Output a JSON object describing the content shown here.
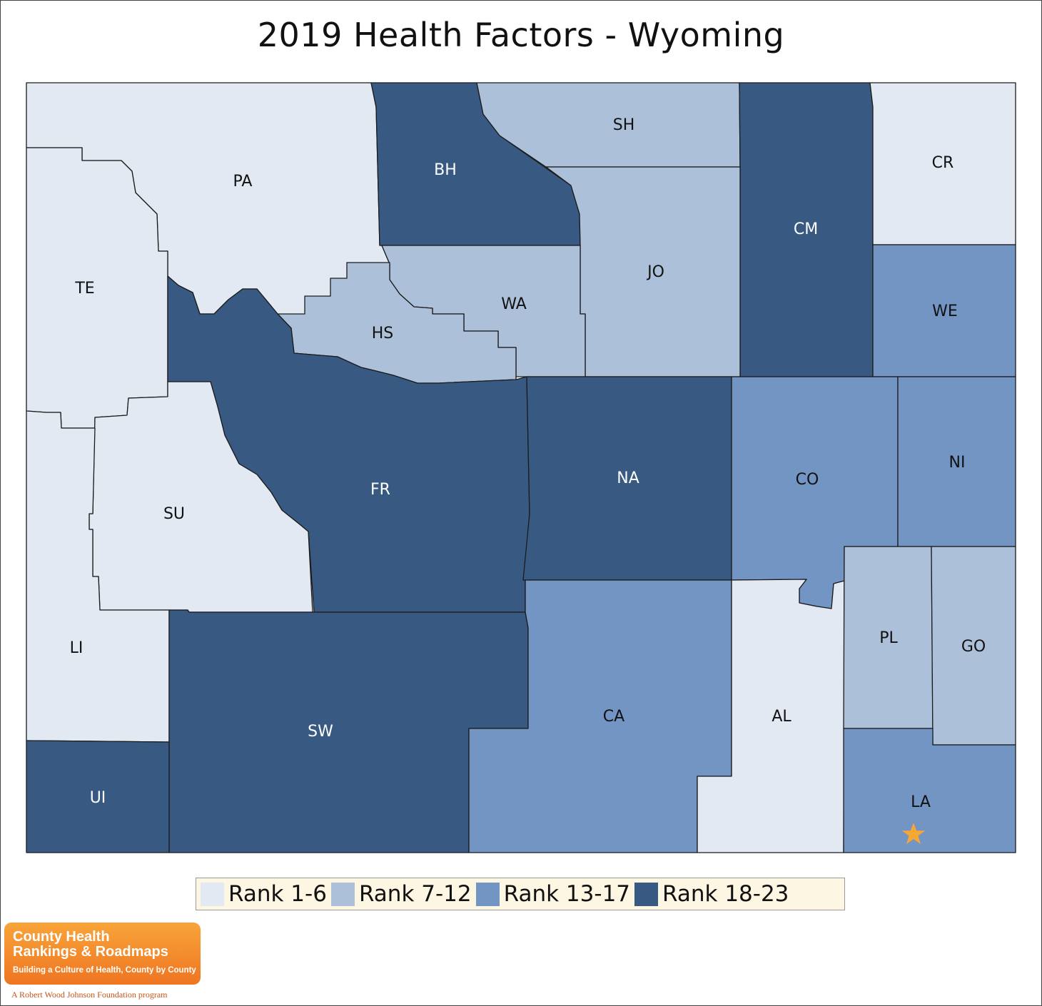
{
  "title": "2019 Health Factors - Wyoming",
  "colors": {
    "rank_1_6": "#e2e9f3",
    "rank_7_12": "#acc0da",
    "rank_13_17": "#7295c3",
    "rank_18_23": "#385a82",
    "star": "#f7a734"
  },
  "legend": [
    {
      "label": "Rank 1-6",
      "color": "#e2e9f3"
    },
    {
      "label": "Rank 7-12",
      "color": "#acc0da"
    },
    {
      "label": "Rank 13-17",
      "color": "#7295c3"
    },
    {
      "label": "Rank 18-23",
      "color": "#385a82"
    }
  ],
  "counties": [
    {
      "abbr": "PA",
      "rank_group": "Rank 1-6"
    },
    {
      "abbr": "BH",
      "rank_group": "Rank 18-23"
    },
    {
      "abbr": "SH",
      "rank_group": "Rank 7-12"
    },
    {
      "abbr": "CM",
      "rank_group": "Rank 18-23"
    },
    {
      "abbr": "CR",
      "rank_group": "Rank 1-6"
    },
    {
      "abbr": "TE",
      "rank_group": "Rank 1-6"
    },
    {
      "abbr": "JO",
      "rank_group": "Rank 7-12"
    },
    {
      "abbr": "WA",
      "rank_group": "Rank 7-12"
    },
    {
      "abbr": "HS",
      "rank_group": "Rank 7-12"
    },
    {
      "abbr": "WE",
      "rank_group": "Rank 13-17"
    },
    {
      "abbr": "FR",
      "rank_group": "Rank 18-23"
    },
    {
      "abbr": "NA",
      "rank_group": "Rank 18-23"
    },
    {
      "abbr": "CO",
      "rank_group": "Rank 13-17"
    },
    {
      "abbr": "NI",
      "rank_group": "Rank 13-17"
    },
    {
      "abbr": "SU",
      "rank_group": "Rank 1-6"
    },
    {
      "abbr": "LI",
      "rank_group": "Rank 1-6"
    },
    {
      "abbr": "SW",
      "rank_group": "Rank 18-23"
    },
    {
      "abbr": "CA",
      "rank_group": "Rank 13-17"
    },
    {
      "abbr": "AL",
      "rank_group": "Rank 1-6"
    },
    {
      "abbr": "PL",
      "rank_group": "Rank 7-12"
    },
    {
      "abbr": "GO",
      "rank_group": "Rank 7-12"
    },
    {
      "abbr": "UI",
      "rank_group": "Rank 18-23"
    },
    {
      "abbr": "LA",
      "rank_group": "Rank 13-17"
    }
  ],
  "capital_marker": {
    "county": "LA",
    "icon": "star-icon"
  },
  "logo": {
    "line1": "County Health",
    "line2": "Rankings & Roadmaps",
    "tagline": "Building a Culture of Health, County by County",
    "footer": "A Robert Wood Johnson Foundation program"
  }
}
